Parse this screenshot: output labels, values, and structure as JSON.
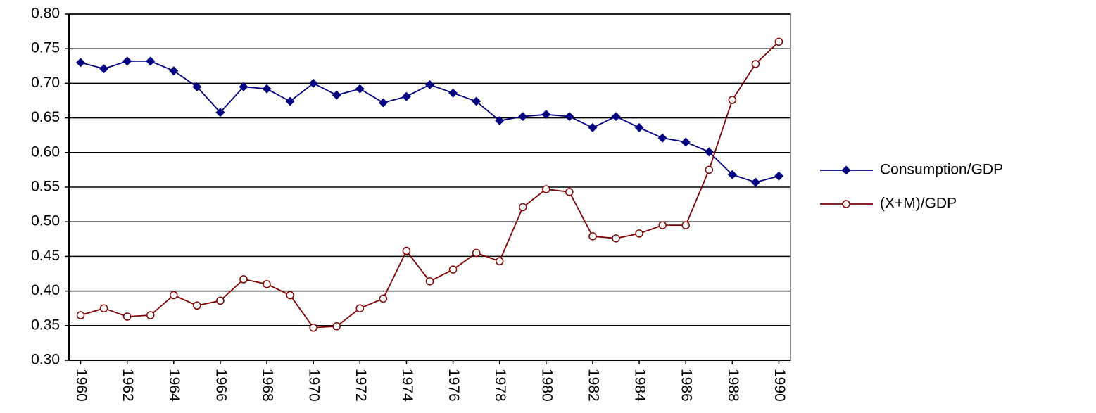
{
  "chart_data": {
    "type": "line",
    "x": [
      1960,
      1961,
      1962,
      1963,
      1964,
      1965,
      1966,
      1967,
      1968,
      1969,
      1970,
      1971,
      1972,
      1973,
      1974,
      1975,
      1976,
      1977,
      1978,
      1979,
      1980,
      1981,
      1982,
      1983,
      1984,
      1985,
      1986,
      1987,
      1988,
      1989,
      1990
    ],
    "xlim": [
      1959.5,
      1990.5
    ],
    "xticks": [
      1960,
      1962,
      1964,
      1966,
      1968,
      1970,
      1972,
      1974,
      1976,
      1978,
      1980,
      1982,
      1984,
      1986,
      1988,
      1990
    ],
    "ylim": [
      0.3,
      0.8
    ],
    "yticks": [
      {
        "value": 0.3,
        "label": "0.30"
      },
      0.35,
      {
        "value": 0.4,
        "label": "0.40"
      },
      0.45,
      {
        "value": 0.5,
        "label": "0.50"
      },
      0.55,
      {
        "value": 0.6,
        "label": "0.60"
      },
      0.65,
      {
        "value": 0.7,
        "label": "0.70"
      },
      0.75,
      {
        "value": 0.8,
        "label": "0.80"
      }
    ],
    "grid": true,
    "legend": "right",
    "series": [
      {
        "name": "Consumption/GDP",
        "color": "#000080",
        "marker": "diamond",
        "values": [
          0.73,
          0.721,
          0.732,
          0.732,
          0.718,
          0.695,
          0.658,
          0.695,
          0.692,
          0.674,
          0.7,
          0.683,
          0.692,
          0.672,
          0.681,
          0.698,
          0.686,
          0.674,
          0.646,
          0.652,
          0.655,
          0.652,
          0.636,
          0.652,
          0.636,
          0.621,
          0.615,
          0.601,
          0.568,
          0.557,
          0.566
        ]
      },
      {
        "name": "(X+M)/GDP",
        "color": "#800000",
        "marker": "circle",
        "values": [
          0.365,
          0.375,
          0.363,
          0.365,
          0.394,
          0.379,
          0.386,
          0.417,
          0.41,
          0.394,
          0.347,
          0.349,
          0.375,
          0.389,
          0.458,
          0.414,
          0.431,
          0.455,
          0.443,
          0.521,
          0.547,
          0.543,
          0.479,
          0.476,
          0.483,
          0.495,
          0.495,
          0.575,
          0.676,
          0.728,
          0.76
        ]
      }
    ]
  }
}
